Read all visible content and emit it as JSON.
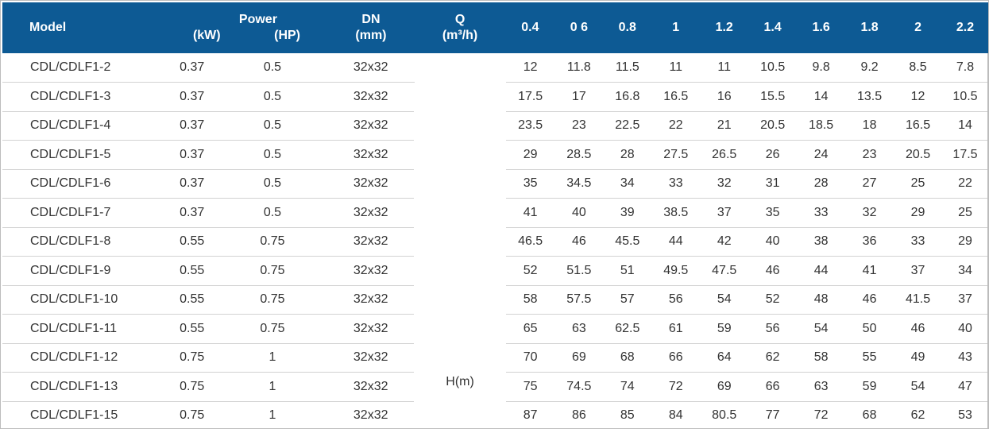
{
  "header": {
    "model": "Model",
    "power_title": "Power",
    "power_kw": "(kW)",
    "power_hp": "(HP)",
    "dn_title": "DN",
    "dn_unit": "(mm)",
    "q_title": "Q",
    "q_unit": "(m³/h)",
    "flows": [
      "0.4",
      "0 6",
      "0.8",
      "1",
      "1.2",
      "1.4",
      "1.6",
      "1.8",
      "2",
      "2.2"
    ]
  },
  "head_label": "H(m)",
  "rows": [
    {
      "model": "CDL/CDLF1-2",
      "kw": "0.37",
      "hp": "0.5",
      "dn": "32x32",
      "h": [
        "12",
        "11.8",
        "11.5",
        "11",
        "11",
        "10.5",
        "9.8",
        "9.2",
        "8.5",
        "7.8"
      ]
    },
    {
      "model": "CDL/CDLF1-3",
      "kw": "0.37",
      "hp": "0.5",
      "dn": "32x32",
      "h": [
        "17.5",
        "17",
        "16.8",
        "16.5",
        "16",
        "15.5",
        "14",
        "13.5",
        "12",
        "10.5"
      ]
    },
    {
      "model": "CDL/CDLF1-4",
      "kw": "0.37",
      "hp": "0.5",
      "dn": "32x32",
      "h": [
        "23.5",
        "23",
        "22.5",
        "22",
        "21",
        "20.5",
        "18.5",
        "18",
        "16.5",
        "14"
      ]
    },
    {
      "model": "CDL/CDLF1-5",
      "kw": "0.37",
      "hp": "0.5",
      "dn": "32x32",
      "h": [
        "29",
        "28.5",
        "28",
        "27.5",
        "26.5",
        "26",
        "24",
        "23",
        "20.5",
        "17.5"
      ]
    },
    {
      "model": "CDL/CDLF1-6",
      "kw": "0.37",
      "hp": "0.5",
      "dn": "32x32",
      "h": [
        "35",
        "34.5",
        "34",
        "33",
        "32",
        "31",
        "28",
        "27",
        "25",
        "22"
      ]
    },
    {
      "model": "CDL/CDLF1-7",
      "kw": "0.37",
      "hp": "0.5",
      "dn": "32x32",
      "h": [
        "41",
        "40",
        "39",
        "38.5",
        "37",
        "35",
        "33",
        "32",
        "29",
        "25"
      ]
    },
    {
      "model": "CDL/CDLF1-8",
      "kw": "0.55",
      "hp": "0.75",
      "dn": "32x32",
      "h": [
        "46.5",
        "46",
        "45.5",
        "44",
        "42",
        "40",
        "38",
        "36",
        "33",
        "29"
      ]
    },
    {
      "model": "CDL/CDLF1-9",
      "kw": "0.55",
      "hp": "0.75",
      "dn": "32x32",
      "h": [
        "52",
        "51.5",
        "51",
        "49.5",
        "47.5",
        "46",
        "44",
        "41",
        "37",
        "34"
      ]
    },
    {
      "model": "CDL/CDLF1-10",
      "kw": "0.55",
      "hp": "0.75",
      "dn": "32x32",
      "h": [
        "58",
        "57.5",
        "57",
        "56",
        "54",
        "52",
        "48",
        "46",
        "41.5",
        "37"
      ]
    },
    {
      "model": "CDL/CDLF1-11",
      "kw": "0.55",
      "hp": "0.75",
      "dn": "32x32",
      "h": [
        "65",
        "63",
        "62.5",
        "61",
        "59",
        "56",
        "54",
        "50",
        "46",
        "40"
      ]
    },
    {
      "model": "CDL/CDLF1-12",
      "kw": "0.75",
      "hp": "1",
      "dn": "32x32",
      "h": [
        "70",
        "69",
        "68",
        "66",
        "64",
        "62",
        "58",
        "55",
        "49",
        "43"
      ]
    },
    {
      "model": "CDL/CDLF1-13",
      "kw": "0.75",
      "hp": "1",
      "dn": "32x32",
      "h": [
        "75",
        "74.5",
        "74",
        "72",
        "69",
        "66",
        "63",
        "59",
        "54",
        "47"
      ]
    },
    {
      "model": "CDL/CDLF1-15",
      "kw": "0.75",
      "hp": "1",
      "dn": "32x32",
      "h": [
        "87",
        "86",
        "85",
        "84",
        "80.5",
        "77",
        "72",
        "68",
        "62",
        "53"
      ]
    }
  ],
  "colors": {
    "header_bg": "#0d5a94",
    "header_text": "#ffffff",
    "cell_text": "#333333",
    "row_divider": "#d2d2d2"
  }
}
